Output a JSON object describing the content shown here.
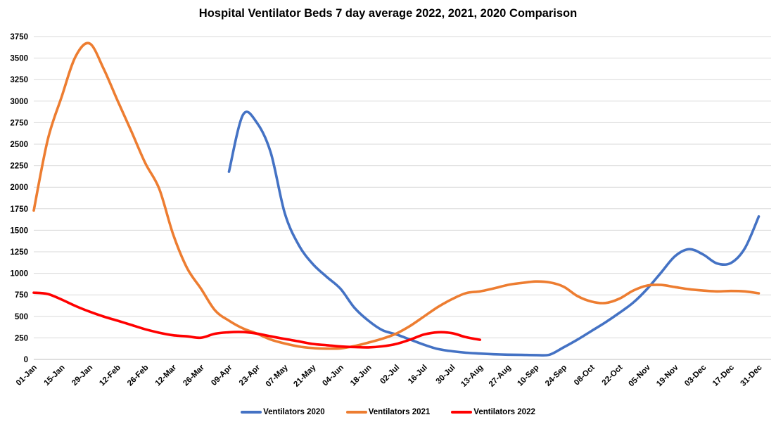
{
  "title": "Hospital Ventilator Beds 7 day average 2022, 2021, 2020 Comparison",
  "chart_data": {
    "type": "line",
    "title": "Hospital Ventilator Beds 7 day average 2022, 2021, 2020 Comparison",
    "xlabel": "",
    "ylabel": "",
    "ylim": [
      0,
      3750
    ],
    "y_tick_step": 250,
    "y_tick_labels": [
      "0",
      "250",
      "500",
      "750",
      "1000",
      "1250",
      "1500",
      "1750",
      "2000",
      "2250",
      "2500",
      "2750",
      "3000",
      "3250",
      "3500",
      "3750"
    ],
    "grid": "horizontal",
    "legend_position": "bottom",
    "x_days": [
      0,
      7,
      14,
      21,
      28,
      35,
      42,
      49,
      56,
      63,
      70,
      77,
      84,
      91,
      98,
      105,
      112,
      119,
      126,
      133,
      140,
      147,
      154,
      161,
      168,
      175,
      182,
      189,
      196,
      203,
      210,
      217,
      224,
      231,
      238,
      245,
      252,
      259,
      266,
      273,
      280,
      287,
      294,
      301,
      308,
      315,
      322,
      329,
      336,
      343,
      350,
      357,
      364
    ],
    "x_weekly_labels": [
      "01-Jan",
      "08-Jan",
      "15-Jan",
      "22-Jan",
      "29-Jan",
      "05-Feb",
      "12-Feb",
      "19-Feb",
      "26-Feb",
      "05-Mar",
      "12-Mar",
      "19-Mar",
      "26-Mar",
      "02-Apr",
      "09-Apr",
      "16-Apr",
      "23-Apr",
      "30-Apr",
      "07-May",
      "14-May",
      "21-May",
      "28-May",
      "04-Jun",
      "11-Jun",
      "18-Jun",
      "25-Jun",
      "02-Jul",
      "09-Jul",
      "16-Jul",
      "23-Jul",
      "30-Jul",
      "06-Aug",
      "13-Aug",
      "20-Aug",
      "27-Aug",
      "03-Sep",
      "10-Sep",
      "17-Sep",
      "24-Sep",
      "01-Oct",
      "08-Oct",
      "15-Oct",
      "22-Oct",
      "29-Oct",
      "05-Nov",
      "12-Nov",
      "19-Nov",
      "26-Nov",
      "03-Dec",
      "10-Dec",
      "17-Dec",
      "24-Dec",
      "31-Dec"
    ],
    "x_tick_every": 2,
    "x_tick_labels": [
      "01-Jan",
      "15-Jan",
      "29-Jan",
      "12-Feb",
      "26-Feb",
      "12-Mar",
      "26-Mar",
      "09-Apr",
      "23-Apr",
      "07-May",
      "21-May",
      "04-Jun",
      "18-Jun",
      "02-Jul",
      "16-Jul",
      "30-Jul",
      "13-Aug",
      "27-Aug",
      "10-Sep",
      "24-Sep",
      "08-Oct",
      "22-Oct",
      "05-Nov",
      "19-Nov",
      "03-Dec",
      "17-Dec",
      "31-Dec"
    ],
    "series": [
      {
        "name": "Ventilators 2020",
        "color": "#4472C4",
        "values": [
          null,
          null,
          null,
          null,
          null,
          null,
          null,
          null,
          null,
          null,
          null,
          null,
          null,
          null,
          2180,
          2840,
          2750,
          2400,
          1700,
          1330,
          1110,
          960,
          820,
          600,
          450,
          340,
          290,
          230,
          170,
          120,
          95,
          78,
          68,
          60,
          55,
          52,
          50,
          55,
          140,
          230,
          330,
          430,
          540,
          660,
          820,
          1010,
          1200,
          1280,
          1220,
          1115,
          1120,
          1290,
          1660
        ]
      },
      {
        "name": "Ventilators 2021",
        "color": "#ED7D31",
        "values": [
          1730,
          2550,
          3050,
          3520,
          3670,
          3380,
          3010,
          2650,
          2280,
          1980,
          1450,
          1060,
          820,
          570,
          450,
          360,
          300,
          230,
          185,
          150,
          132,
          125,
          128,
          155,
          195,
          240,
          300,
          390,
          500,
          610,
          700,
          770,
          790,
          825,
          865,
          888,
          905,
          895,
          845,
          735,
          672,
          655,
          705,
          800,
          858,
          865,
          840,
          815,
          800,
          790,
          795,
          790,
          768
        ]
      },
      {
        "name": "Ventilators 2022",
        "color": "#FF0000",
        "values": [
          775,
          760,
          695,
          620,
          555,
          498,
          450,
          400,
          350,
          310,
          280,
          268,
          252,
          298,
          315,
          318,
          300,
          268,
          238,
          210,
          180,
          165,
          150,
          143,
          140,
          152,
          180,
          230,
          290,
          315,
          305,
          258,
          228,
          null,
          null,
          null,
          null,
          null,
          null,
          null,
          null,
          null,
          null,
          null,
          null,
          null,
          null,
          null,
          null,
          null,
          null,
          null,
          null
        ]
      }
    ],
    "colors": {
      "grid": "#D9D9D9",
      "axis": "#BFBFBF",
      "text": "#000000",
      "background": "#FFFFFF"
    }
  }
}
